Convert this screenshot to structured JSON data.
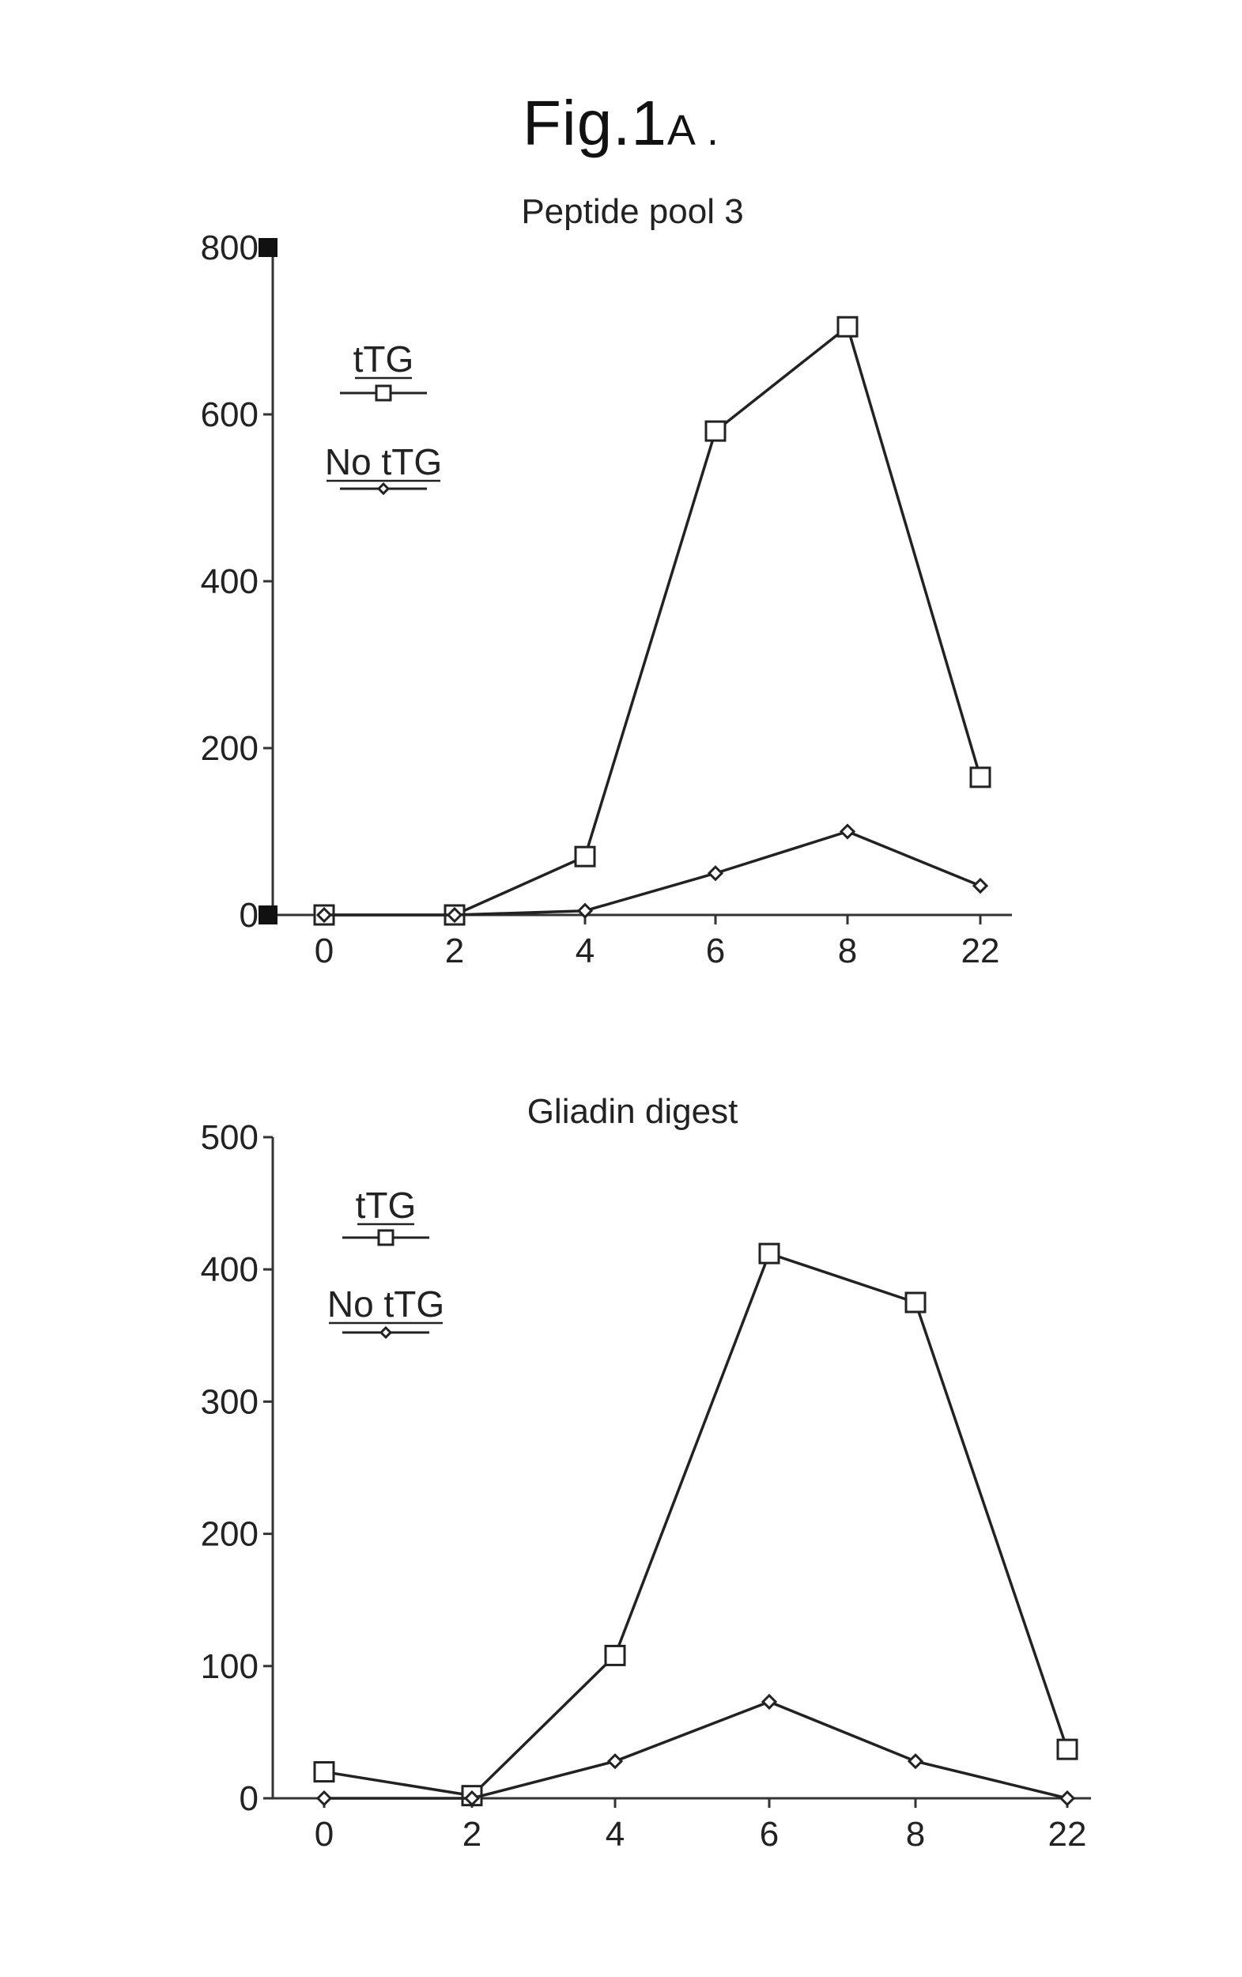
{
  "figure": {
    "title": "Fig.1",
    "title_suffix": "A ."
  },
  "chart_data": [
    {
      "type": "line",
      "title": "Peptide pool 3",
      "xlabel": "",
      "ylabel": "",
      "categories": [
        "0",
        "2",
        "4",
        "6",
        "8",
        "22"
      ],
      "yticks": [
        0,
        200,
        400,
        600,
        800
      ],
      "ylim": [
        0,
        800
      ],
      "grid": false,
      "legend_position": "top-left",
      "series": [
        {
          "name": "tTG",
          "marker": "square",
          "values": [
            0,
            0,
            70,
            580,
            705,
            165
          ]
        },
        {
          "name": "No tTG",
          "marker": "diamond",
          "values": [
            0,
            0,
            5,
            50,
            100,
            35
          ]
        }
      ]
    },
    {
      "type": "line",
      "title": "Gliadin digest",
      "xlabel": "",
      "ylabel": "",
      "categories": [
        "0",
        "2",
        "4",
        "6",
        "8",
        "22"
      ],
      "yticks": [
        0,
        100,
        200,
        300,
        400,
        500
      ],
      "ylim": [
        0,
        500
      ],
      "grid": false,
      "legend_position": "top-left",
      "series": [
        {
          "name": "tTG",
          "marker": "square",
          "values": [
            20,
            2,
            108,
            412,
            375,
            37
          ]
        },
        {
          "name": "No tTG",
          "marker": "diamond",
          "values": [
            0,
            0,
            28,
            73,
            28,
            0
          ]
        }
      ]
    }
  ]
}
